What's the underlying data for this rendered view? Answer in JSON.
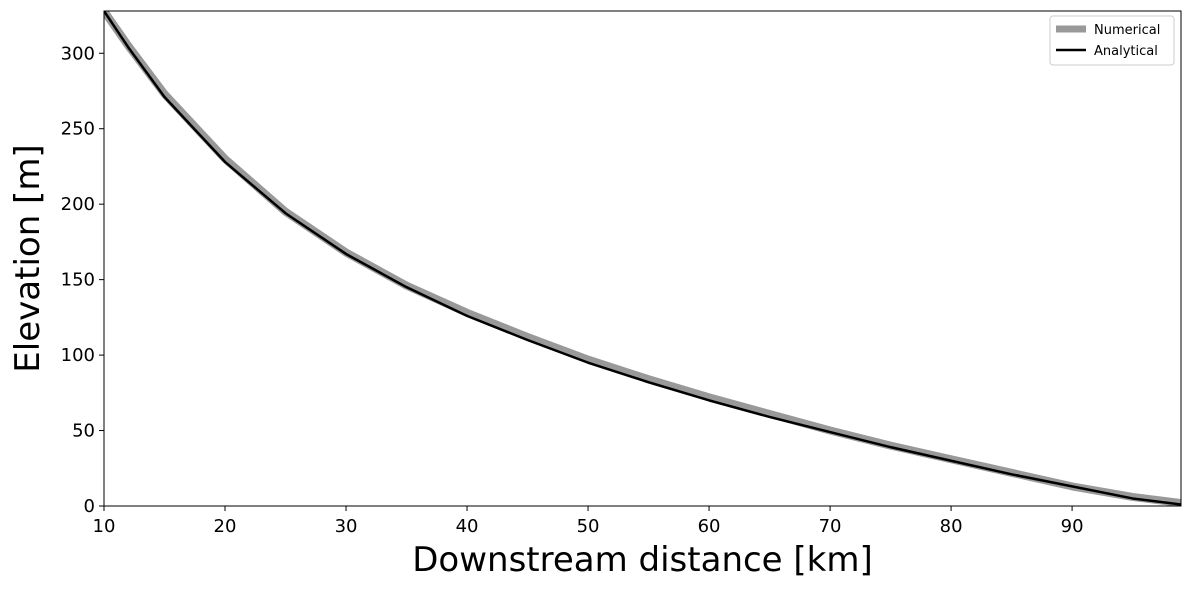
{
  "chart_data": {
    "type": "line",
    "title": "",
    "xlabel": "Downstream distance [km]",
    "ylabel": "Elevation [m]",
    "xlim": [
      10,
      99
    ],
    "ylim": [
      0,
      328
    ],
    "xticks": [
      10,
      20,
      30,
      40,
      50,
      60,
      70,
      80,
      90
    ],
    "yticks": [
      0,
      50,
      100,
      150,
      200,
      250,
      300
    ],
    "grid": false,
    "legend_position": "top-right",
    "series": [
      {
        "name": "Numerical",
        "color": "#999999",
        "x": [
          10,
          12,
          15,
          20,
          25,
          30,
          35,
          40,
          45,
          50,
          55,
          60,
          65,
          70,
          75,
          80,
          85,
          90,
          95,
          99
        ],
        "y": [
          328,
          305,
          273,
          230,
          195,
          168,
          146,
          128,
          112,
          97,
          84,
          72,
          61,
          50,
          40,
          31,
          22,
          13,
          6,
          2
        ]
      },
      {
        "name": "Analytical",
        "color": "#000000",
        "x": [
          10,
          12,
          15,
          20,
          25,
          30,
          35,
          40,
          45,
          50,
          55,
          60,
          65,
          70,
          75,
          80,
          85,
          90,
          95,
          99
        ],
        "y": [
          328,
          304,
          271,
          228,
          194,
          167,
          145,
          126,
          110,
          95,
          82,
          70,
          59,
          49,
          39,
          30,
          21,
          13,
          5,
          1
        ]
      }
    ]
  }
}
